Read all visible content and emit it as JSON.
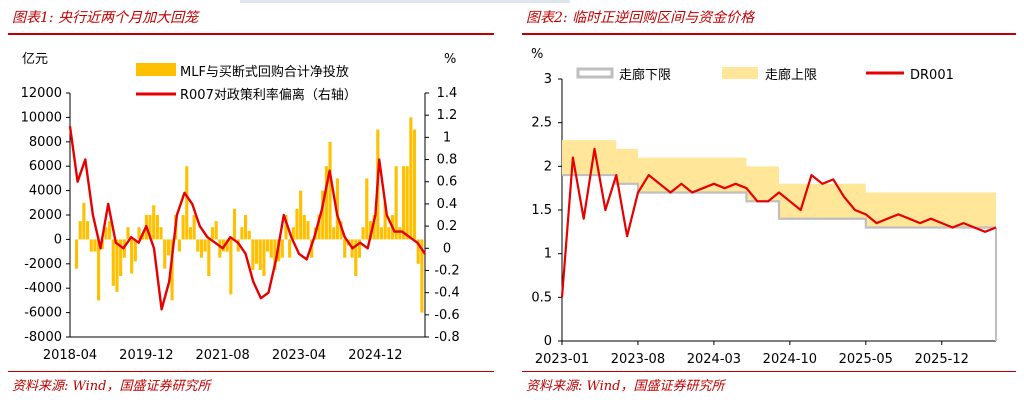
{
  "charts": {
    "left": {
      "title": "图表1:  央行近两个月加大回笼",
      "source": "资料来源:  Wind，国盛证券研究所",
      "left_unit": "亿元",
      "right_unit": "%",
      "legend": [
        "MLF与买断式回购合计净投放",
        "R007对政策利率偏离（右轴）"
      ]
    },
    "right": {
      "title": "图表2:  临时正逆回购区间与资金价格",
      "source": "资料来源:  Wind，国盛证券研究所",
      "unit": "%",
      "legend": [
        "走廊下限",
        "走廊上限",
        "DR001"
      ]
    }
  },
  "chart_data": [
    {
      "type": "bar+line",
      "title": "图表1:  央行近两个月加大回笼",
      "x_ticks": [
        "2018-04",
        "2019-12",
        "2021-08",
        "2023-04",
        "2024-12"
      ],
      "x_range": [
        "2018-04",
        "2026-01"
      ],
      "ylim_left": [
        -8000,
        12000
      ],
      "yticks_left": [
        12000,
        10000,
        8000,
        6000,
        4000,
        2000,
        0,
        -2000,
        -4000,
        -6000,
        -8000
      ],
      "ylim_right": [
        -0.8,
        1.4
      ],
      "yticks_right": [
        1.4,
        1.2,
        1,
        0.8,
        0.6,
        0.4,
        0.2,
        0,
        -0.2,
        -0.4,
        -0.6,
        -0.8
      ],
      "series": [
        {
          "name": "MLF与买断式回购合计净投放",
          "type": "bar",
          "color": "#ffc000",
          "points": [
            [
              "2018-04",
              -2400
            ],
            [
              "2018-05",
              1500
            ],
            [
              "2018-06",
              3000
            ],
            [
              "2018-07",
              1500
            ],
            [
              "2018-08",
              -1000
            ],
            [
              "2018-09",
              -1000
            ],
            [
              "2018-10",
              -5000
            ],
            [
              "2018-11",
              -800
            ],
            [
              "2018-12",
              1000
            ],
            [
              "2019-01",
              1500
            ],
            [
              "2019-02",
              -3800
            ],
            [
              "2019-03",
              -4300
            ],
            [
              "2019-04",
              -3000
            ],
            [
              "2019-05",
              -1500
            ],
            [
              "2019-06",
              1000
            ],
            [
              "2019-07",
              -2800
            ],
            [
              "2019-08",
              -1800
            ],
            [
              "2019-09",
              1000
            ],
            [
              "2019-10",
              500
            ],
            [
              "2019-11",
              2000
            ],
            [
              "2019-12",
              2000
            ],
            [
              "2019-13",
              2800
            ],
            [
              "2020-01",
              2000
            ],
            [
              "2020-02",
              1000
            ],
            [
              "2020-03",
              -2400
            ],
            [
              "2020-04",
              -1300
            ],
            [
              "2020-05",
              -5000
            ],
            [
              "2020-06",
              2000
            ],
            [
              "2020-07",
              -1000
            ],
            [
              "2020-08",
              2000
            ],
            [
              "2020-09",
              6000
            ],
            [
              "2020-10",
              1000
            ],
            [
              "2020-11",
              2000
            ],
            [
              "2020-12",
              -1000
            ],
            [
              "2021-01",
              -1500
            ],
            [
              "2021-02",
              -1000
            ],
            [
              "2021-03",
              -3000
            ],
            [
              "2021-04",
              1000
            ],
            [
              "2021-05",
              1500
            ],
            [
              "2021-06",
              -1500
            ],
            [
              "2021-07",
              -1000
            ],
            [
              "2021-08",
              -1000
            ],
            [
              "2021-09",
              -4500
            ],
            [
              "2021-10",
              2500
            ],
            [
              "2021-11",
              -1000
            ],
            [
              "2021-12",
              1000
            ],
            [
              "2022-01",
              2000
            ],
            [
              "2022-02",
              700
            ],
            [
              "2022-03",
              -2500
            ],
            [
              "2022-04",
              -2000
            ],
            [
              "2022-05",
              -2500
            ],
            [
              "2022-06",
              -3000
            ],
            [
              "2022-07",
              -1000
            ],
            [
              "2022-08",
              -1500
            ],
            [
              "2022-09",
              -2500
            ],
            [
              "2022-10",
              -1800
            ],
            [
              "2022-11",
              -1500
            ],
            [
              "2022-12",
              2000
            ],
            [
              "2023-01",
              -1500
            ],
            [
              "2023-02",
              1000
            ],
            [
              "2023-03",
              2500
            ],
            [
              "2023-04",
              4000
            ],
            [
              "2023-05",
              2000
            ],
            [
              "2023-06",
              1500
            ],
            [
              "2023-07",
              -1500
            ],
            [
              "2023-08",
              1000
            ],
            [
              "2023-09",
              2000
            ],
            [
              "2023-10",
              4000
            ],
            [
              "2023-11",
              6000
            ],
            [
              "2023-12",
              8000
            ],
            [
              "2024-01",
              1000
            ],
            [
              "2024-02",
              5000
            ],
            [
              "2024-03",
              1500
            ],
            [
              "2024-04",
              -1500
            ],
            [
              "2024-05",
              -500
            ],
            [
              "2024-06",
              -1500
            ],
            [
              "2024-07",
              -3000
            ],
            [
              "2024-08",
              -1500
            ],
            [
              "2024-09",
              1000
            ],
            [
              "2024-10",
              5000
            ],
            [
              "2024-11",
              1500
            ],
            [
              "2024-12",
              2000
            ],
            [
              "2025-01",
              9000
            ],
            [
              "2025-02",
              1000
            ],
            [
              "2025-03",
              3000
            ],
            [
              "2025-04",
              1000
            ],
            [
              "2025-05",
              2000
            ],
            [
              "2025-06",
              6000
            ],
            [
              "2025-07",
              1000
            ],
            [
              "2025-08",
              6000
            ],
            [
              "2025-09",
              6000
            ],
            [
              "2025-10",
              10000
            ],
            [
              "2025-11",
              9000
            ],
            [
              "2025-12",
              -2000
            ],
            [
              "2026-01",
              -6000
            ]
          ]
        },
        {
          "name": "R007对政策利率偏离（右轴）",
          "type": "line",
          "color": "#e60000",
          "points": [
            [
              "2018-04",
              1.1
            ],
            [
              "2018-06",
              0.6
            ],
            [
              "2018-08",
              0.8
            ],
            [
              "2018-10",
              0.3
            ],
            [
              "2018-12",
              0.0
            ],
            [
              "2019-02",
              0.4
            ],
            [
              "2019-04",
              0.05
            ],
            [
              "2019-06",
              0.0
            ],
            [
              "2019-08",
              0.1
            ],
            [
              "2019-10",
              0.05
            ],
            [
              "2019-12",
              0.2
            ],
            [
              "2020-02",
              0.0
            ],
            [
              "2020-04",
              -0.55
            ],
            [
              "2020-06",
              -0.3
            ],
            [
              "2020-08",
              0.3
            ],
            [
              "2020-10",
              0.5
            ],
            [
              "2020-12",
              0.4
            ],
            [
              "2021-02",
              0.2
            ],
            [
              "2021-04",
              0.1
            ],
            [
              "2021-06",
              0.05
            ],
            [
              "2021-08",
              0.0
            ],
            [
              "2021-10",
              0.1
            ],
            [
              "2021-12",
              0.05
            ],
            [
              "2022-02",
              -0.05
            ],
            [
              "2022-04",
              -0.3
            ],
            [
              "2022-06",
              -0.45
            ],
            [
              "2022-08",
              -0.4
            ],
            [
              "2022-10",
              -0.1
            ],
            [
              "2022-12",
              0.3
            ],
            [
              "2023-02",
              0.1
            ],
            [
              "2023-04",
              -0.05
            ],
            [
              "2023-06",
              -0.1
            ],
            [
              "2023-08",
              0.1
            ],
            [
              "2023-10",
              0.35
            ],
            [
              "2023-12",
              0.7
            ],
            [
              "2024-02",
              0.3
            ],
            [
              "2024-04",
              0.1
            ],
            [
              "2024-06",
              0.0
            ],
            [
              "2024-08",
              0.05
            ],
            [
              "2024-10",
              0.0
            ],
            [
              "2024-12",
              0.3
            ],
            [
              "2025-01",
              0.8
            ],
            [
              "2025-03",
              0.3
            ],
            [
              "2025-05",
              0.15
            ],
            [
              "2025-07",
              0.15
            ],
            [
              "2025-09",
              0.1
            ],
            [
              "2025-11",
              0.05
            ],
            [
              "2026-01",
              -0.05
            ]
          ]
        }
      ]
    },
    {
      "type": "area+line",
      "title": "图表2:  临时正逆回购区间与资金价格",
      "x_ticks": [
        "2023-01",
        "2023-08",
        "2024-03",
        "2024-10",
        "2025-05",
        "2025-12"
      ],
      "x_range": [
        "2023-01",
        "2026-05"
      ],
      "ylim": [
        0,
        3
      ],
      "yticks": [
        0,
        0.5,
        1,
        1.5,
        2,
        2.5,
        3
      ],
      "series": [
        {
          "name": "走廊下限",
          "type": "step",
          "color": "#bfbfbf",
          "points": [
            [
              "2023-01",
              1.9
            ],
            [
              "2023-06",
              1.8
            ],
            [
              "2023-08",
              1.7
            ],
            [
              "2024-06",
              1.6
            ],
            [
              "2024-09",
              1.4
            ],
            [
              "2025-05",
              1.3
            ],
            [
              "2026-05",
              1.3
            ]
          ]
        },
        {
          "name": "走廊上限",
          "type": "step-area",
          "color": "#ffe699",
          "points": [
            [
              "2023-01",
              2.3
            ],
            [
              "2023-06",
              2.2
            ],
            [
              "2023-08",
              2.1
            ],
            [
              "2024-06",
              2.0
            ],
            [
              "2024-09",
              1.8
            ],
            [
              "2025-05",
              1.7
            ],
            [
              "2026-05",
              1.7
            ]
          ]
        },
        {
          "name": "DR001",
          "type": "line",
          "color": "#e60000",
          "points": [
            [
              "2023-01",
              0.5
            ],
            [
              "2023-02",
              2.1
            ],
            [
              "2023-03",
              1.4
            ],
            [
              "2023-04",
              2.2
            ],
            [
              "2023-05",
              1.5
            ],
            [
              "2023-06",
              1.9
            ],
            [
              "2023-07",
              1.2
            ],
            [
              "2023-08",
              1.7
            ],
            [
              "2023-09",
              1.9
            ],
            [
              "2023-10",
              1.8
            ],
            [
              "2023-11",
              1.7
            ],
            [
              "2023-12",
              1.8
            ],
            [
              "2024-01",
              1.7
            ],
            [
              "2024-02",
              1.75
            ],
            [
              "2024-03",
              1.8
            ],
            [
              "2024-04",
              1.75
            ],
            [
              "2024-05",
              1.8
            ],
            [
              "2024-06",
              1.75
            ],
            [
              "2024-07",
              1.6
            ],
            [
              "2024-08",
              1.6
            ],
            [
              "2024-09",
              1.7
            ],
            [
              "2024-10",
              1.6
            ],
            [
              "2024-11",
              1.5
            ],
            [
              "2024-12",
              1.9
            ],
            [
              "2025-01",
              1.8
            ],
            [
              "2025-02",
              1.85
            ],
            [
              "2025-03",
              1.65
            ],
            [
              "2025-04",
              1.5
            ],
            [
              "2025-05",
              1.45
            ],
            [
              "2025-06",
              1.35
            ],
            [
              "2025-07",
              1.4
            ],
            [
              "2025-08",
              1.45
            ],
            [
              "2025-09",
              1.4
            ],
            [
              "2025-10",
              1.35
            ],
            [
              "2025-11",
              1.4
            ],
            [
              "2025-12",
              1.35
            ],
            [
              "2026-01",
              1.3
            ],
            [
              "2026-02",
              1.35
            ],
            [
              "2026-03",
              1.3
            ],
            [
              "2026-04",
              1.25
            ],
            [
              "2026-05",
              1.3
            ]
          ]
        }
      ]
    }
  ]
}
